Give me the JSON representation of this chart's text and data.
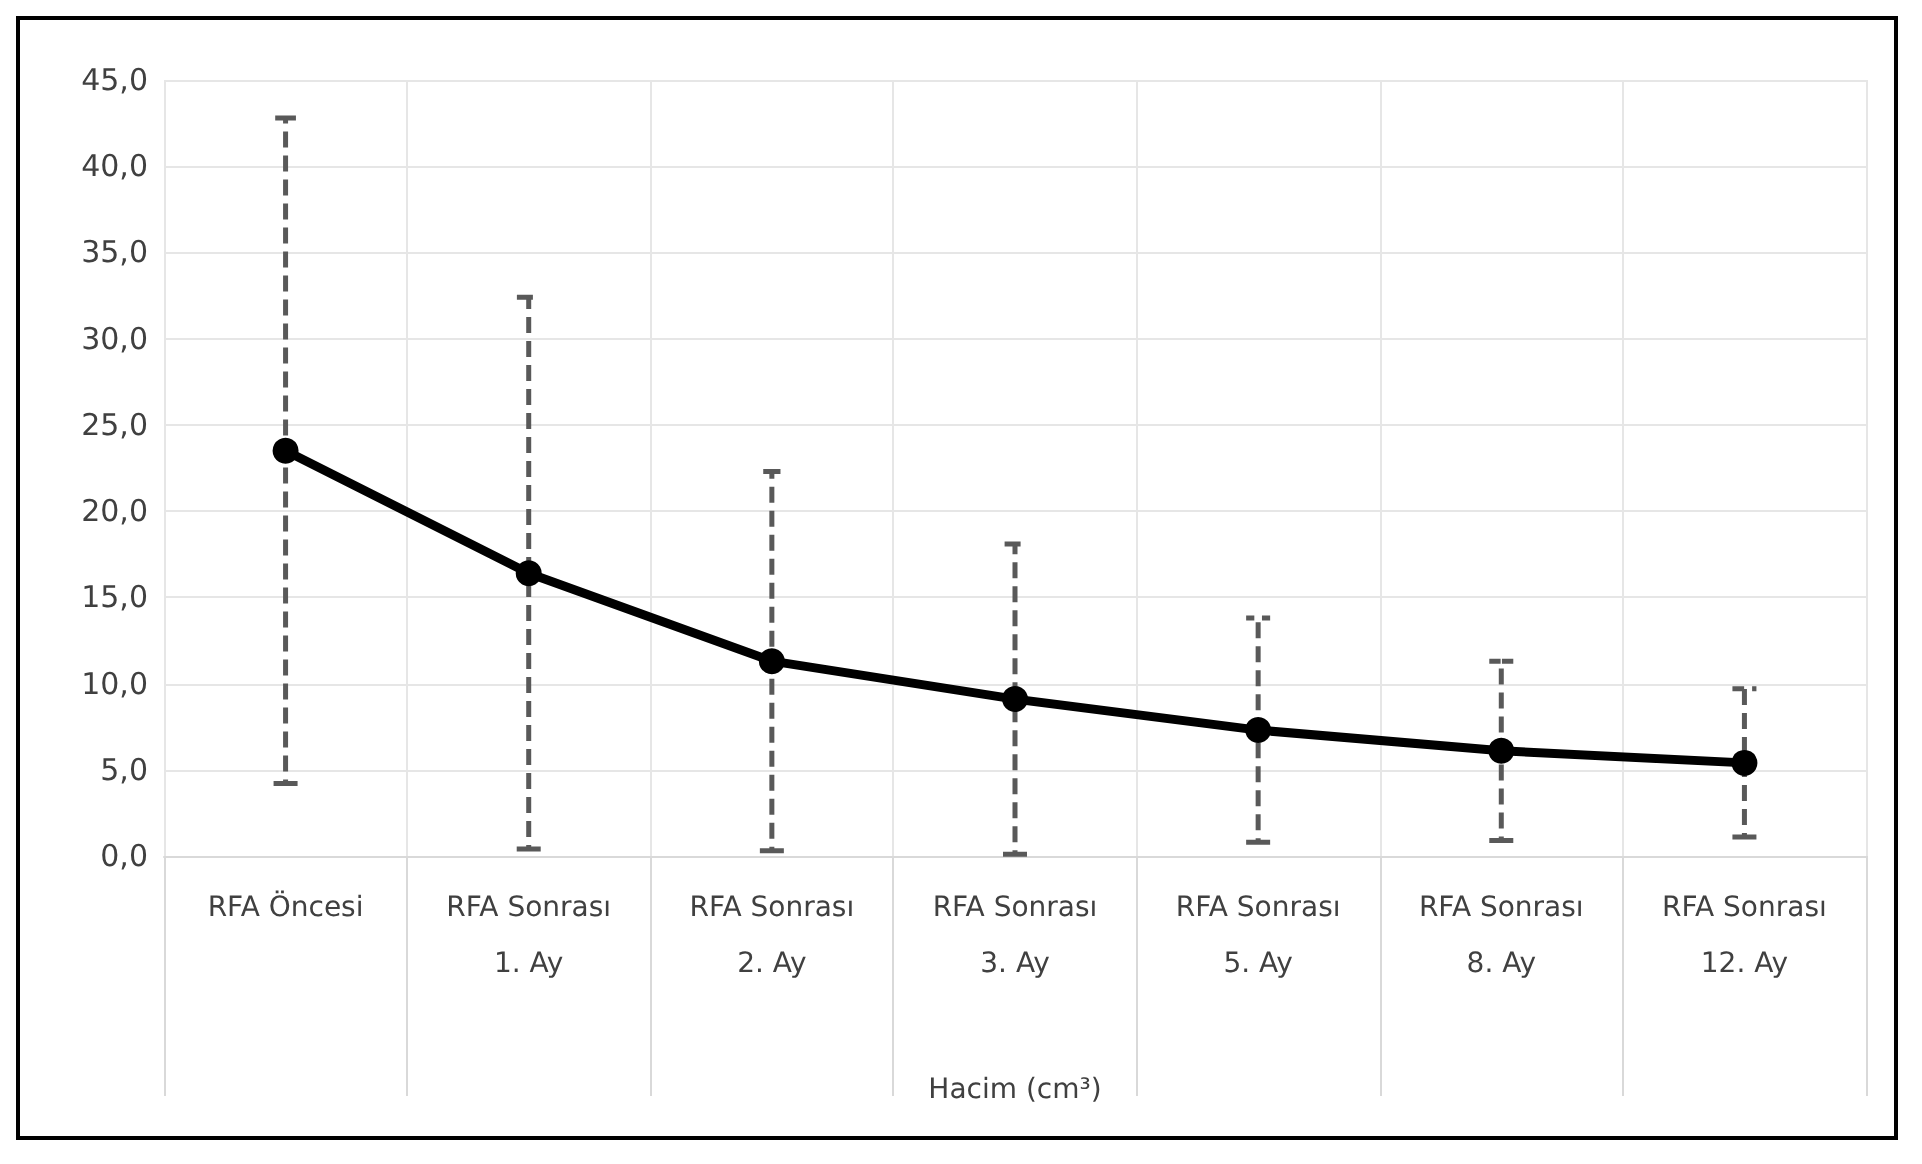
{
  "chart_data": {
    "type": "line",
    "xlabel": "Hacim (cm³)",
    "categories": [
      "RFA Öncesi",
      "RFA Sonrası\n1. Ay",
      "RFA Sonrası\n2. Ay",
      "RFA Sonrası\n3. Ay",
      "RFA Sonrası\n5. Ay",
      "RFA Sonrası\n8. Ay",
      "RFA Sonrası\n12. Ay"
    ],
    "series": [
      {
        "color": "#000000",
        "values": [
          23.5,
          16.4,
          11.3,
          9.1,
          7.3,
          6.1,
          5.4
        ],
        "errors": [
          19.3,
          16.0,
          11.0,
          9.0,
          6.5,
          5.2,
          4.3
        ]
      }
    ],
    "ylim": [
      0,
      45
    ],
    "yticks": [
      {
        "value": 0,
        "label": "0,0"
      },
      {
        "value": 5,
        "label": "5,0"
      },
      {
        "value": 10,
        "label": "10,0"
      },
      {
        "value": 15,
        "label": "15,0"
      },
      {
        "value": 20,
        "label": "20,0"
      },
      {
        "value": 25,
        "label": "25,0"
      },
      {
        "value": 30,
        "label": "30,0"
      },
      {
        "value": 35,
        "label": "35,0"
      },
      {
        "value": 40,
        "label": "40,0"
      },
      {
        "value": 45,
        "label": "45,0"
      }
    ],
    "grid": true,
    "marker": "circle",
    "line_style": "solid"
  }
}
